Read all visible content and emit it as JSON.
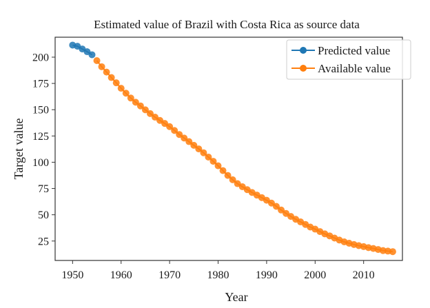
{
  "chart_data": {
    "type": "line",
    "title": "Estimated value of Brazil with Costa Rica as source data",
    "xlabel": "Year",
    "ylabel": "Target value",
    "xlim": [
      1946.4,
      2018.0
    ],
    "ylim": [
      6.5,
      219.0
    ],
    "x_ticks": [
      1950,
      1960,
      1970,
      1980,
      1990,
      2000,
      2010
    ],
    "y_ticks": [
      25,
      50,
      75,
      100,
      125,
      150,
      175,
      200
    ],
    "grid": false,
    "legend_position": "top-right",
    "series": [
      {
        "name": "Predicted value",
        "color": "#1f77b4",
        "marker": "circle",
        "x": [
          1950,
          1951,
          1952,
          1953,
          1954
        ],
        "y": [
          211.5,
          210.4,
          207.8,
          205.2,
          202.3
        ]
      },
      {
        "name": "Available value",
        "color": "#ff7f0e",
        "marker": "circle",
        "x": [
          1955,
          1956,
          1957,
          1958,
          1959,
          1960,
          1961,
          1962,
          1963,
          1964,
          1965,
          1966,
          1967,
          1968,
          1969,
          1970,
          1971,
          1972,
          1973,
          1974,
          1975,
          1976,
          1977,
          1978,
          1979,
          1980,
          1981,
          1982,
          1983,
          1984,
          1985,
          1986,
          1987,
          1988,
          1989,
          1990,
          1991,
          1992,
          1993,
          1994,
          1995,
          1996,
          1997,
          1998,
          1999,
          2000,
          2001,
          2002,
          2003,
          2004,
          2005,
          2006,
          2007,
          2008,
          2009,
          2010,
          2011,
          2012,
          2013,
          2014,
          2015,
          2016
        ],
        "y": [
          196.7,
          190.9,
          185.8,
          180.6,
          175.6,
          170.4,
          165.7,
          161.1,
          157.1,
          153.6,
          149.9,
          146.3,
          142.9,
          139.8,
          136.9,
          133.9,
          130.2,
          126.4,
          123.0,
          119.6,
          116.1,
          112.7,
          109.0,
          104.9,
          100.9,
          96.6,
          92.0,
          87.4,
          83.3,
          79.6,
          76.7,
          73.9,
          71.2,
          68.7,
          66.3,
          63.8,
          61.1,
          58.0,
          54.5,
          51.3,
          48.4,
          45.7,
          43.2,
          40.8,
          38.3,
          36.3,
          34.0,
          31.8,
          29.9,
          27.8,
          25.9,
          24.2,
          22.9,
          21.7,
          20.6,
          19.7,
          18.7,
          17.9,
          16.9,
          15.9,
          15.4,
          14.9
        ]
      }
    ]
  }
}
